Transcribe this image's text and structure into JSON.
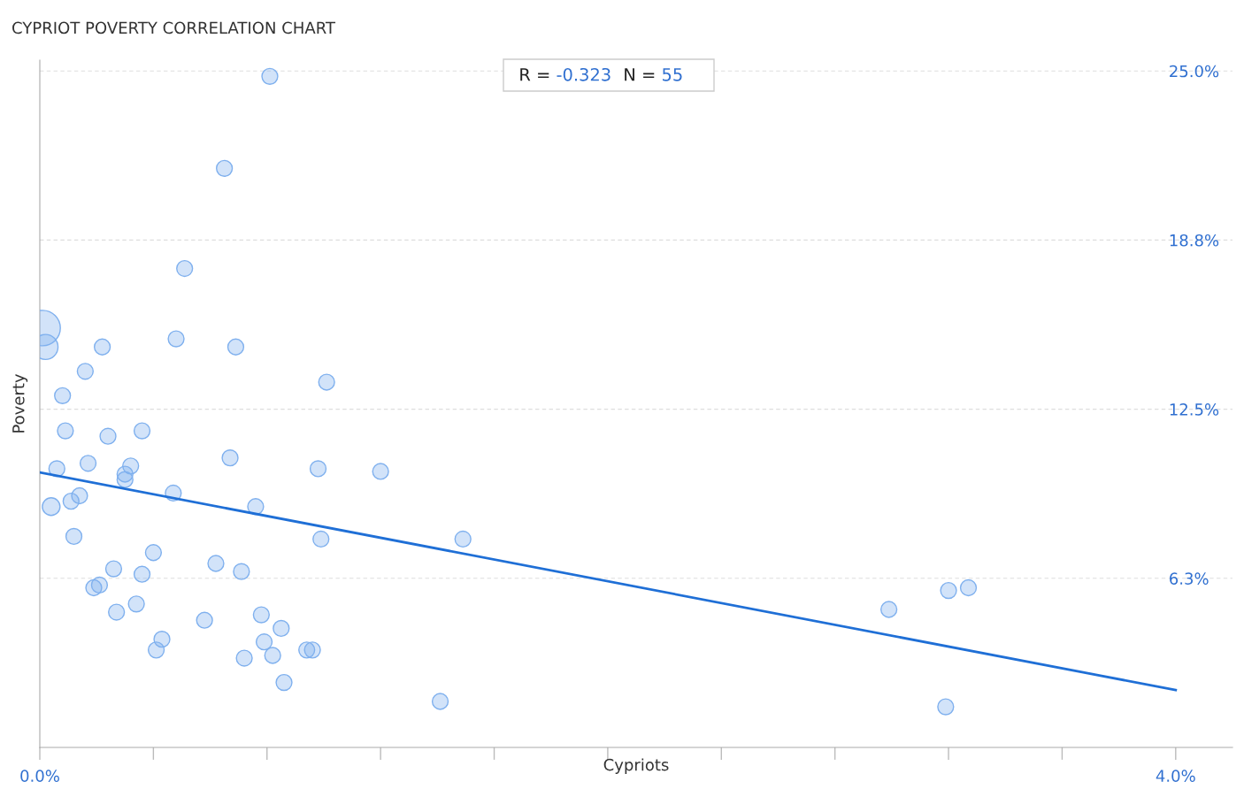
{
  "chart_data": {
    "type": "bubble",
    "title": "CYPRIOT POVERTY CORRELATION CHART",
    "xlabel": "Cypriots",
    "ylabel": "Poverty",
    "annotations": [
      "R = -0.323",
      "N = 55"
    ],
    "xlim": [
      0,
      4.2
    ],
    "xticks": [
      {
        "value": 0,
        "label": "0.0%"
      },
      {
        "value": 0.4,
        "label": null
      },
      {
        "value": 0.8,
        "label": null
      },
      {
        "value": 1.2,
        "label": null
      },
      {
        "value": 1.6,
        "label": null
      },
      {
        "value": 2.0,
        "label": null
      },
      {
        "value": 2.4,
        "label": null
      },
      {
        "value": 2.8,
        "label": null
      },
      {
        "value": 3.2,
        "label": null
      },
      {
        "value": 3.6,
        "label": null
      },
      {
        "value": 4.0,
        "label": "4.0%"
      }
    ],
    "ylim": [
      0,
      25.4
    ],
    "yticks": [
      {
        "value": 6.25,
        "label": "6.3%"
      },
      {
        "value": 12.5,
        "label": "12.5%"
      },
      {
        "value": 18.75,
        "label": "18.8%"
      },
      {
        "value": 25,
        "label": "25.0%"
      }
    ],
    "grid": "y",
    "series": [
      {
        "color": "#7fb0ee",
        "x": [
          0.81,
          0.65,
          0.51,
          0.01,
          0.02,
          0.48,
          0.69,
          0.22,
          0.16,
          1.01,
          0.08,
          0.09,
          0.36,
          0.24,
          0.67,
          0.17,
          0.32,
          0.06,
          0.98,
          1.2,
          0.3,
          0.3,
          0.47,
          0.14,
          0.11,
          0.04,
          0.76,
          0.12,
          0.99,
          1.49,
          0.4,
          0.62,
          0.26,
          0.36,
          0.71,
          0.21,
          0.19,
          0.34,
          0.27,
          2.99,
          3.2,
          3.27,
          0.78,
          0.58,
          0.85,
          0.43,
          0.79,
          0.41,
          0.82,
          0.94,
          0.96,
          0.72,
          0.86,
          1.41,
          3.19
        ],
        "values": [
          24.8,
          21.4,
          17.7,
          15.5,
          14.8,
          15.1,
          14.8,
          14.8,
          13.9,
          13.5,
          13.0,
          11.7,
          11.7,
          11.5,
          10.7,
          10.5,
          10.4,
          10.3,
          10.3,
          10.2,
          10.1,
          9.9,
          9.4,
          9.3,
          9.1,
          8.9,
          8.9,
          7.8,
          7.7,
          7.7,
          7.2,
          6.8,
          6.6,
          6.4,
          6.5,
          6.0,
          5.9,
          5.3,
          5.0,
          5.1,
          5.8,
          5.9,
          4.9,
          4.7,
          4.4,
          4.0,
          3.9,
          3.6,
          3.4,
          3.6,
          3.6,
          3.3,
          2.4,
          1.7,
          1.5
        ],
        "sizes": [
          0.2,
          0.2,
          0.2,
          1,
          0.5,
          0.2,
          0.2,
          0.2,
          0.2,
          0.2,
          0.2,
          0.2,
          0.2,
          0.2,
          0.2,
          0.2,
          0.2,
          0.2,
          0.2,
          0.2,
          0.2,
          0.2,
          0.2,
          0.2,
          0.2,
          0.25,
          0.2,
          0.2,
          0.2,
          0.2,
          0.2,
          0.2,
          0.2,
          0.2,
          0.2,
          0.2,
          0.2,
          0.2,
          0.2,
          0.2,
          0.2,
          0.2,
          0.2,
          0.2,
          0.2,
          0.2,
          0.2,
          0.2,
          0.2,
          0.2,
          0.2,
          0.2,
          0.2,
          0.2,
          0.2
        ]
      },
      {
        "type": "line",
        "color": "#1f6fd6",
        "x": [
          0,
          4.0
        ],
        "values": [
          10.16,
          2.12
        ]
      }
    ]
  }
}
